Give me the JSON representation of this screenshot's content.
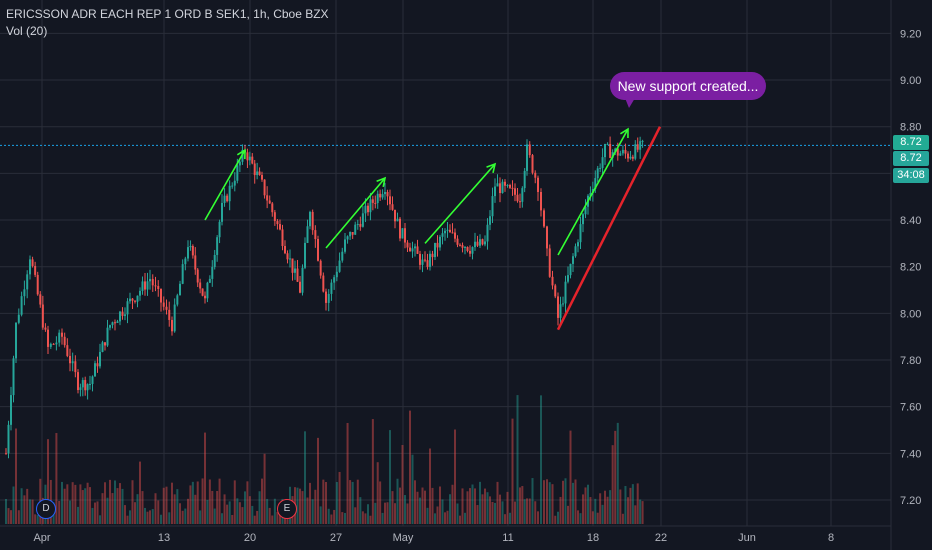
{
  "header": {
    "symbol_title": "ERICSSON ADR EACH REP 1 ORD B SEK1, 1h, Cboe BZX",
    "volume_label": "Vol (20)"
  },
  "annotation": {
    "text": "New support created..."
  },
  "markers": [
    {
      "letter": "D",
      "color": "#2962ff",
      "date": "Apr 1"
    },
    {
      "letter": "E",
      "color": "#f23645",
      "date": "Apr 22"
    }
  ],
  "price_tags": [
    {
      "value": "8.72",
      "bg": "#22ab94",
      "label": "resistance"
    },
    {
      "value": "8.72",
      "bg": "#26a69a",
      "label": "last-price"
    },
    {
      "value": "34:08",
      "bg": "#26a69a",
      "label": "countdown"
    }
  ],
  "colors": {
    "background": "#131722",
    "grid": "#2a2e39",
    "up": "#26a69a",
    "down": "#ef5350",
    "trend_arrow": "#33ff33",
    "support_line": "#e5232b",
    "resistance_line": "#1aa3e8"
  },
  "chart_data": {
    "type": "candlestick",
    "title": "ERICSSON ADR EACH REP 1 ORD B SEK1, 1h, Cboe BZX",
    "x_tick_labels": [
      "Apr",
      "13",
      "20",
      "27",
      "May",
      "11",
      "18",
      "22",
      "Jun",
      "8"
    ],
    "y_tick_labels": [
      "9.20",
      "9.00",
      "8.80",
      "8.60",
      "8.40",
      "8.20",
      "8.00",
      "7.80",
      "7.60",
      "7.40",
      "7.20"
    ],
    "ylim": [
      7.13,
      9.3
    ],
    "resistance_level": 8.72,
    "last_price": 8.72,
    "countdown": "34:08",
    "grid": true,
    "close_path": [
      [
        "Apr 1",
        7.4
      ],
      [
        "Apr 2",
        7.95
      ],
      [
        "Apr 3",
        8.25
      ],
      [
        "Apr 6",
        7.85
      ],
      [
        "Apr 7",
        7.9
      ],
      [
        "Apr 8",
        7.7
      ],
      [
        "Apr 9",
        7.7
      ],
      [
        "Apr 10",
        7.95
      ],
      [
        "Apr 13",
        8.1
      ],
      [
        "Apr 14",
        8.15
      ],
      [
        "Apr 15",
        7.95
      ],
      [
        "Apr 16",
        8.3
      ],
      [
        "Apr 17",
        8.05
      ],
      [
        "Apr 18",
        8.45
      ],
      [
        "Apr 20",
        8.7
      ],
      [
        "Apr 21",
        8.55
      ],
      [
        "Apr 22",
        8.35
      ],
      [
        "Apr 23",
        8.1
      ],
      [
        "Apr 24",
        8.45
      ],
      [
        "Apr 27",
        8.05
      ],
      [
        "Apr 28",
        8.3
      ],
      [
        "Apr 29",
        8.45
      ],
      [
        "Apr 30",
        8.55
      ],
      [
        "May 1",
        8.35
      ],
      [
        "May 4",
        8.2
      ],
      [
        "May 5",
        8.35
      ],
      [
        "May 6",
        8.28
      ],
      [
        "May 7",
        8.3
      ],
      [
        "May 8",
        8.55
      ],
      [
        "May 11",
        8.5
      ],
      [
        "May 12",
        8.7
      ],
      [
        "May 13",
        8.55
      ],
      [
        "May 14",
        8.25
      ],
      [
        "May 15",
        7.98
      ],
      [
        "May 18",
        8.5
      ],
      [
        "May 19",
        8.7
      ],
      [
        "May 20",
        8.68
      ],
      [
        "May 21",
        8.72
      ]
    ],
    "series": [
      {
        "name": "Vol (20)",
        "type": "volume-histogram"
      }
    ],
    "trend_arrows": [
      {
        "from": [
          "Apr 17",
          8.4
        ],
        "to": [
          "Apr 20",
          8.7
        ]
      },
      {
        "from": [
          "Apr 27",
          8.28
        ],
        "to": [
          "Apr 30",
          8.58
        ]
      },
      {
        "from": [
          "May 4",
          8.3
        ],
        "to": [
          "May 8",
          8.64
        ]
      },
      {
        "from": [
          "May 15",
          8.25
        ],
        "to": [
          "May 20",
          8.79
        ]
      }
    ],
    "support_line": {
      "from": [
        "May 15",
        7.93
      ],
      "to": [
        "May 22",
        8.8
      ]
    }
  }
}
